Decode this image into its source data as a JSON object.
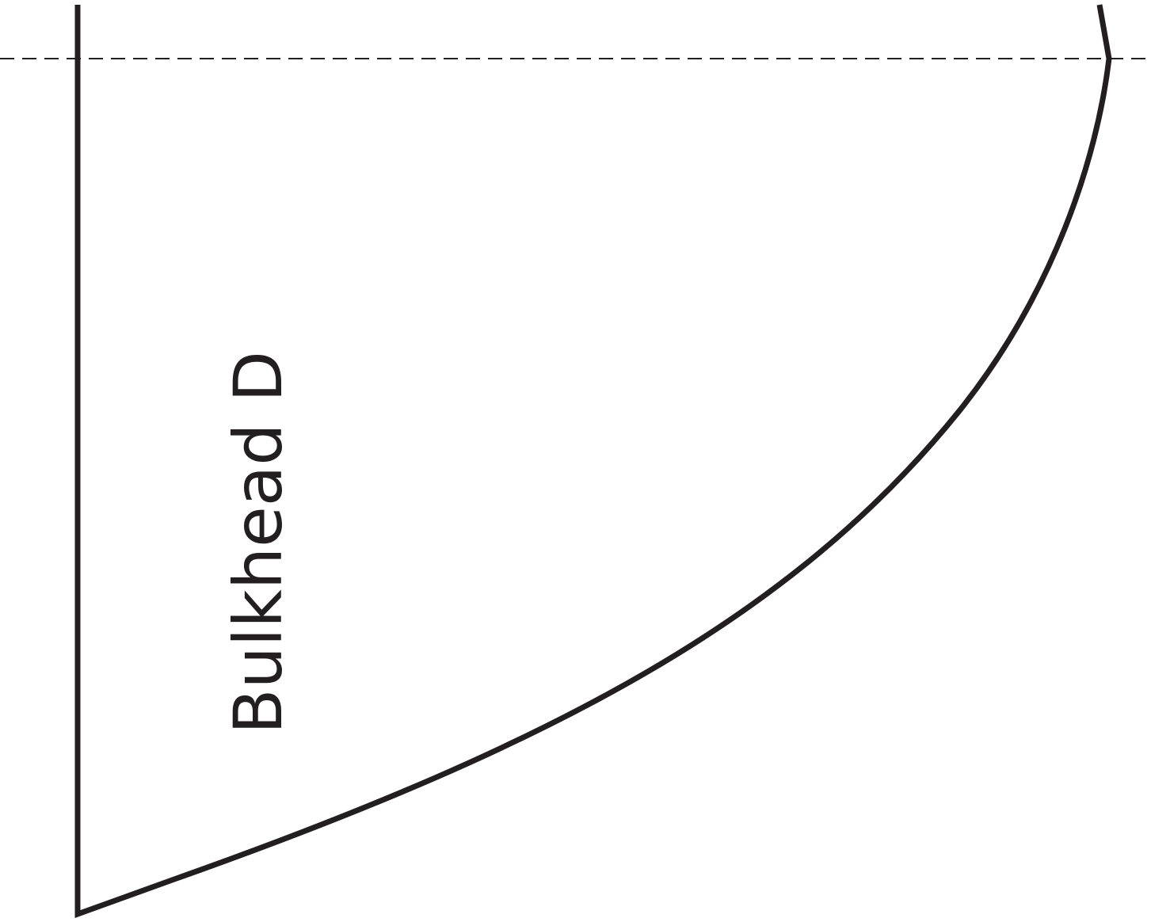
{
  "label": "Bulkhead D"
}
